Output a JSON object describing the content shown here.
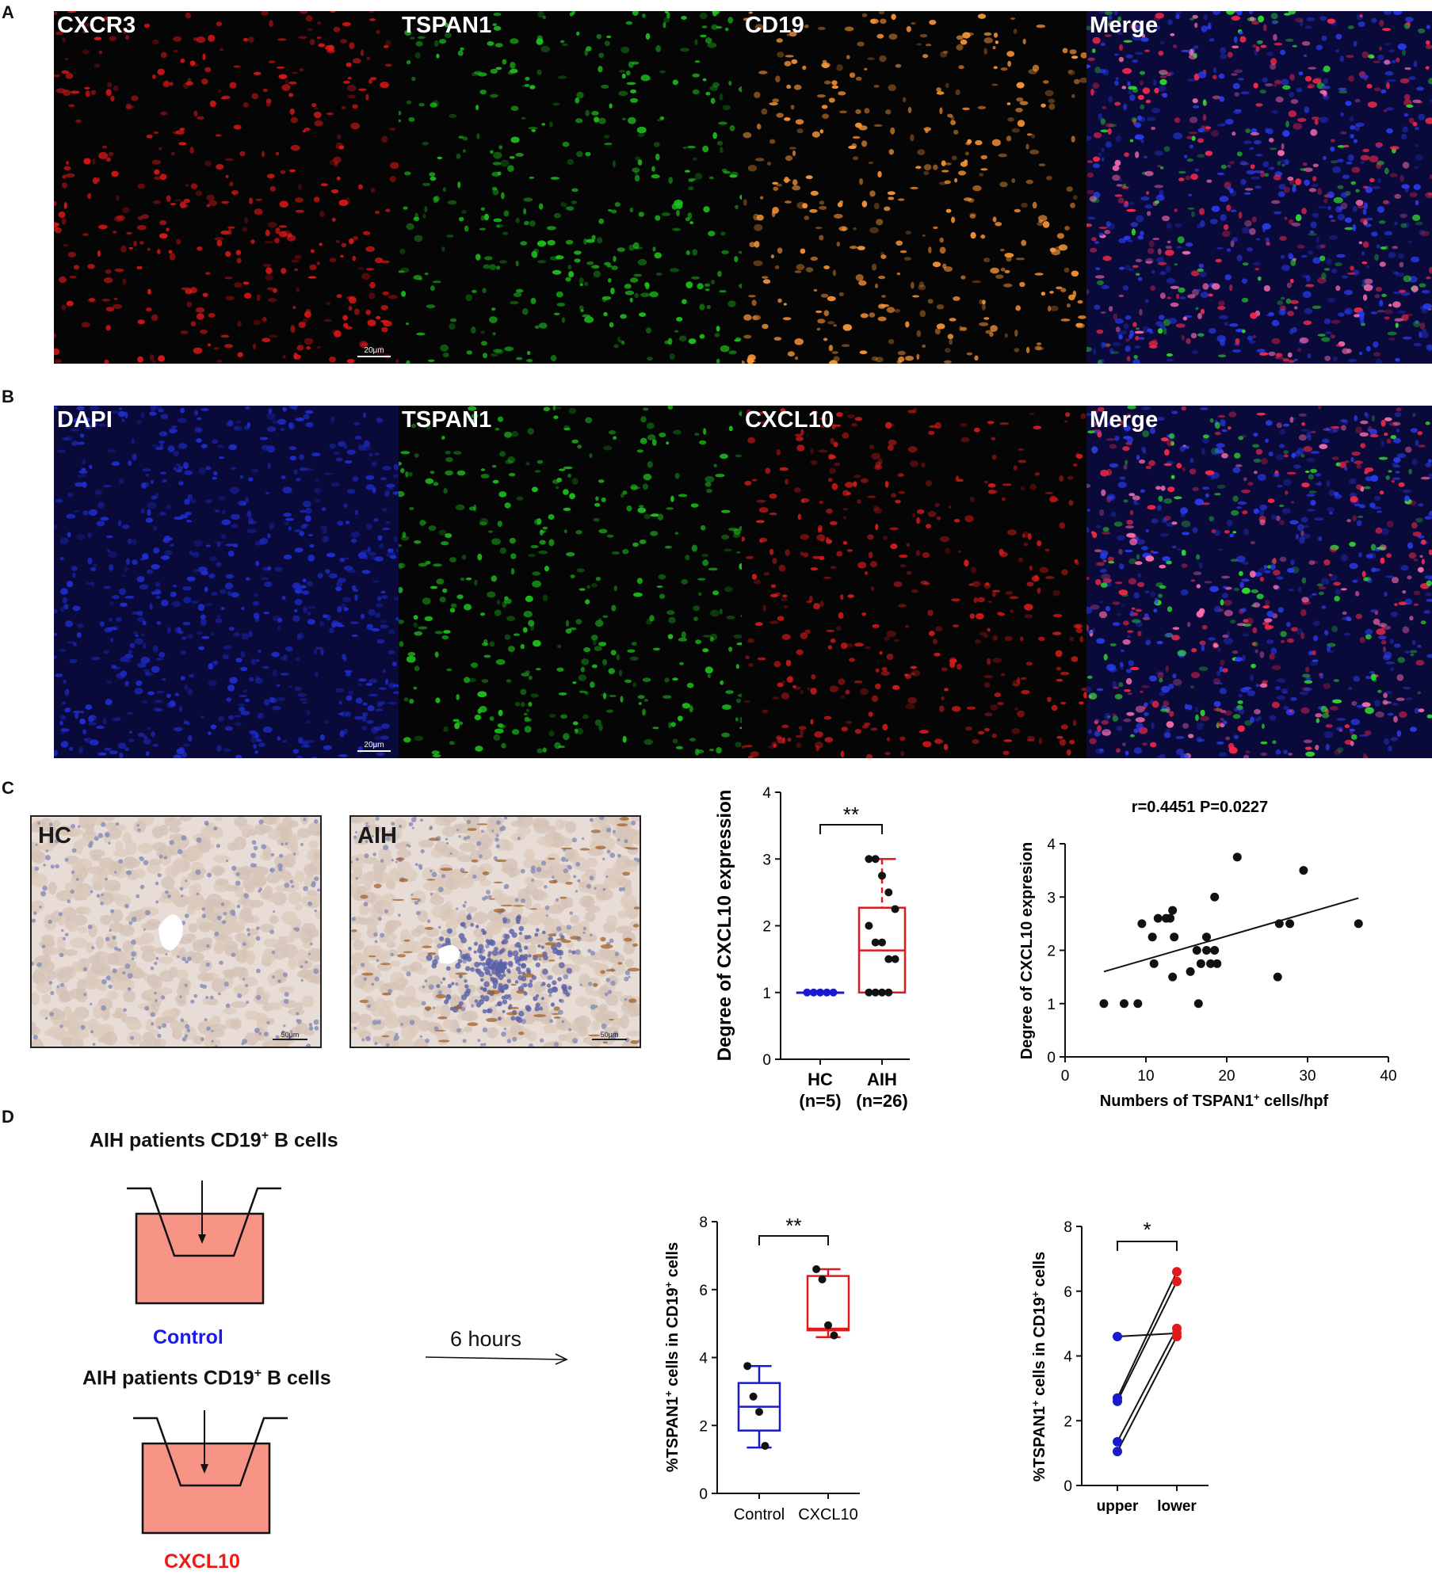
{
  "figure": {
    "panels": {
      "A": {
        "letter": "A",
        "channels": [
          {
            "label": "CXCR3",
            "color": "#e01818"
          },
          {
            "label": "TSPAN1",
            "color": "#1ec41e"
          },
          {
            "label": "CD19",
            "color": "#ff9a3a"
          },
          {
            "label": "Merge",
            "color": "#2233dd"
          }
        ],
        "scale_bar": "20μm"
      },
      "B": {
        "letter": "B",
        "channels": [
          {
            "label": "DAPI",
            "color": "#1f2fd6"
          },
          {
            "label": "TSPAN1",
            "color": "#1ec41e"
          },
          {
            "label": "CXCL10",
            "color": "#d81c1c"
          },
          {
            "label": "Merge",
            "color": "#2233dd"
          }
        ],
        "scale_bar": "20μm"
      },
      "C": {
        "letter": "C",
        "ihc": [
          {
            "label": "HC",
            "scale_bar": "50μm"
          },
          {
            "label": "AIH",
            "scale_bar": "50μm"
          }
        ]
      },
      "D": {
        "letter": "D",
        "schematic": {
          "top_title": "AIH patients CD19",
          "top_sup": "+",
          "top_tail": " B cells",
          "control_label": "Control",
          "control_color": "#1a1aee",
          "bottom_title": "AIH patients CD19",
          "bottom_sup": "+",
          "bottom_tail": " B cells",
          "cxcl10_label": "CXCL10",
          "cxcl10_color": "#ee1a1a",
          "arrow_label": "6 hours",
          "well_fill": "#f79486"
        }
      }
    }
  },
  "chart_data": [
    {
      "id": "C-box",
      "type": "box",
      "ylabel": "Degree of CXCL10 expression",
      "ylim": [
        0,
        4
      ],
      "yticks": [
        "0",
        "1",
        "2",
        "3",
        "4"
      ],
      "significance": "**",
      "groups": [
        {
          "name": "HC",
          "sub": "(n=5)",
          "color": "#1a1acc",
          "min": 1,
          "q1": 1,
          "median": 1,
          "q3": 1,
          "max": 1,
          "points": [
            1,
            1,
            1,
            1,
            1
          ]
        },
        {
          "name": "AIH",
          "sub": "(n=26)",
          "color": "#e01a1a",
          "min": 1,
          "q1": 1,
          "median": 1.63,
          "q3": 2.27,
          "max": 3,
          "points": [
            3,
            3,
            2.75,
            2.5,
            2.25,
            2,
            1.75,
            1.75,
            1.5,
            1.5,
            1,
            1,
            1,
            1
          ]
        }
      ]
    },
    {
      "id": "C-scatter",
      "type": "scatter",
      "title": "r=0.4451 P=0.0227",
      "xlabel": "Numbers of TSPAN1",
      "xlabel_sup": "+",
      "xlabel_tail": " cells/hpf",
      "ylabel": "Degree of CXCL10 expresion",
      "xlim": [
        0,
        40
      ],
      "ylim": [
        0,
        4
      ],
      "xticks": [
        "0",
        "10",
        "20",
        "30",
        "40"
      ],
      "yticks": [
        "0",
        "1",
        "2",
        "3",
        "4"
      ],
      "regression": [
        [
          4.8,
          1.6
        ],
        [
          36.3,
          2.98
        ]
      ],
      "points": [
        [
          4.8,
          1
        ],
        [
          7.3,
          1
        ],
        [
          9,
          1
        ],
        [
          9.5,
          2.5
        ],
        [
          10.8,
          2.25
        ],
        [
          11,
          1.75
        ],
        [
          11.5,
          2.6
        ],
        [
          12.5,
          2.6
        ],
        [
          13,
          2.6
        ],
        [
          13.3,
          2.75
        ],
        [
          13.3,
          1.5
        ],
        [
          13.5,
          2.25
        ],
        [
          15.5,
          1.6
        ],
        [
          16.3,
          2
        ],
        [
          16.5,
          1
        ],
        [
          16.8,
          1.75
        ],
        [
          17.5,
          2.25
        ],
        [
          17.5,
          2
        ],
        [
          18,
          1.75
        ],
        [
          18.5,
          3
        ],
        [
          18.5,
          2
        ],
        [
          18.8,
          1.75
        ],
        [
          21.3,
          3.75
        ],
        [
          26.3,
          1.5
        ],
        [
          26.5,
          2.5
        ],
        [
          27.8,
          2.5
        ],
        [
          29.5,
          3.5
        ],
        [
          36.3,
          2.5
        ]
      ]
    },
    {
      "id": "D-box",
      "type": "box",
      "ylabel": "%TSPAN1",
      "ylabel_sup1": "+",
      "ylabel_mid": " cells in CD19",
      "ylabel_sup2": "+",
      "ylabel_tail": " cells",
      "ylim": [
        0,
        8
      ],
      "yticks": [
        "0",
        "2",
        "4",
        "6",
        "8"
      ],
      "significance": "**",
      "groups": [
        {
          "name": "Control",
          "color": "#1a1acc",
          "min": 1.35,
          "q1": 1.85,
          "median": 2.55,
          "q3": 3.25,
          "max": 3.75,
          "points": [
            3.75,
            2.85,
            2.4,
            1.4
          ]
        },
        {
          "name": "CXCL10",
          "color": "#e01a1a",
          "min": 4.6,
          "q1": 4.8,
          "median": 4.85,
          "q3": 6.4,
          "max": 6.6,
          "points": [
            6.6,
            6.3,
            4.95,
            4.65
          ]
        }
      ]
    },
    {
      "id": "D-paired",
      "type": "paired",
      "ylabel": "%TSPAN1",
      "ylabel_sup1": "+",
      "ylabel_mid": " cells in CD19",
      "ylabel_sup2": "+",
      "ylabel_tail": " cells",
      "ylim": [
        0,
        8
      ],
      "yticks": [
        "0",
        "2",
        "4",
        "6",
        "8"
      ],
      "significance": "*",
      "categories": [
        "upper",
        "lower"
      ],
      "colors": [
        "#1a1acc",
        "#e01a1a"
      ],
      "pairs": [
        [
          4.6,
          4.7
        ],
        [
          2.7,
          6.6
        ],
        [
          2.6,
          6.3
        ],
        [
          1.35,
          4.85
        ],
        [
          1.05,
          4.6
        ]
      ]
    }
  ]
}
